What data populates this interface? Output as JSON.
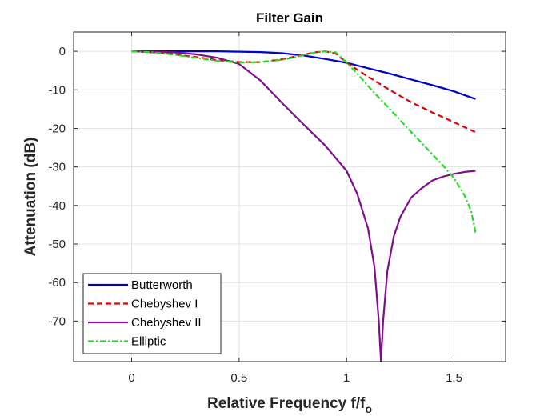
{
  "chart_data": {
    "type": "line",
    "title": "Filter Gain",
    "xlabel": {
      "main": "Relative Frequency f/f",
      "sub": "o"
    },
    "ylabel": "Attenuation (dB)",
    "xlim": [
      -0.27,
      1.74
    ],
    "ylim": [
      -80.5,
      5
    ],
    "xticks": [
      0,
      0.5,
      1,
      1.5
    ],
    "xtick_labels": [
      "0",
      "0.5",
      "1",
      "1.5"
    ],
    "yticks": [
      0,
      -10,
      -20,
      -30,
      -40,
      -50,
      -60,
      -70
    ],
    "ytick_labels": [
      "0",
      "-10",
      "-20",
      "-30",
      "-40",
      "-50",
      "-60",
      "-70"
    ],
    "grid": true,
    "legend_position": "bottom-left",
    "series": [
      {
        "name": "Butterworth",
        "color": "#0000cc",
        "dash": "solid",
        "x": [
          0,
          0.1,
          0.2,
          0.3,
          0.4,
          0.5,
          0.6,
          0.7,
          0.8,
          0.9,
          1.0,
          1.1,
          1.2,
          1.3,
          1.4,
          1.5,
          1.6
        ],
        "y": [
          0,
          0,
          0,
          0,
          0,
          -0.1,
          -0.2,
          -0.5,
          -1.1,
          -2.0,
          -3.0,
          -4.4,
          -5.8,
          -7.3,
          -8.8,
          -10.4,
          -12.4
        ]
      },
      {
        "name": "Chebyshev I",
        "color": "#e60000",
        "dash": "dashed",
        "x": [
          0,
          0.1,
          0.2,
          0.3,
          0.4,
          0.5,
          0.6,
          0.7,
          0.8,
          0.85,
          0.9,
          0.95,
          1.0,
          1.05,
          1.1,
          1.2,
          1.3,
          1.4,
          1.5,
          1.6
        ],
        "y": [
          0,
          -0.3,
          -0.8,
          -1.5,
          -2.3,
          -2.8,
          -2.8,
          -2.1,
          -0.9,
          -0.3,
          0,
          -0.6,
          -2.9,
          -4.8,
          -6.6,
          -10.0,
          -13.2,
          -15.9,
          -18.4,
          -21.0
        ]
      },
      {
        "name": "Chebyshev II",
        "color": "#7e0f8c",
        "dash": "solid",
        "x": [
          0,
          0.1,
          0.2,
          0.3,
          0.4,
          0.5,
          0.6,
          0.7,
          0.8,
          0.9,
          1.0,
          1.05,
          1.1,
          1.13,
          1.15,
          1.16,
          1.17,
          1.19,
          1.22,
          1.25,
          1.3,
          1.35,
          1.4,
          1.45,
          1.5,
          1.55,
          1.6
        ],
        "y": [
          0,
          -0.1,
          -0.3,
          -0.8,
          -1.7,
          -3.3,
          -7.6,
          -13.4,
          -19.0,
          -24.4,
          -31.0,
          -37.0,
          -46.0,
          -56.0,
          -70.0,
          -80.5,
          -70.0,
          -57.0,
          -48.0,
          -43.0,
          -38.0,
          -35.5,
          -33.5,
          -32.5,
          -31.8,
          -31.3,
          -31.0
        ]
      },
      {
        "name": "Elliptic",
        "color": "#22dd22",
        "dash": "dashdot",
        "x": [
          0,
          0.1,
          0.2,
          0.3,
          0.4,
          0.5,
          0.6,
          0.7,
          0.75,
          0.8,
          0.85,
          0.9,
          0.95,
          1.0,
          1.05,
          1.1,
          1.15,
          1.2,
          1.25,
          1.3,
          1.35,
          1.4,
          1.45,
          1.5,
          1.55,
          1.58,
          1.6
        ],
        "y": [
          0,
          -0.3,
          -0.9,
          -1.7,
          -2.5,
          -2.9,
          -2.8,
          -2.2,
          -1.7,
          -1.0,
          -0.4,
          0,
          -0.3,
          -2.9,
          -5.8,
          -9.0,
          -12.0,
          -14.9,
          -17.9,
          -20.9,
          -23.8,
          -26.8,
          -29.7,
          -32.9,
          -37.5,
          -41.5,
          -47.0
        ]
      }
    ]
  }
}
